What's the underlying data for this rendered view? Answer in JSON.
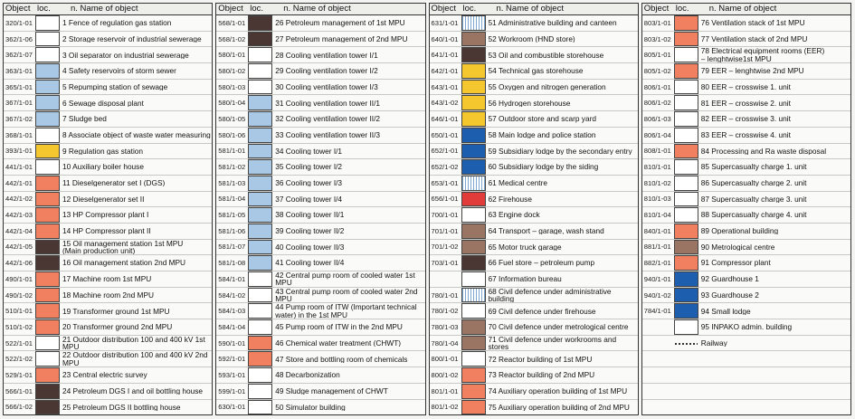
{
  "headers": {
    "object": "Object",
    "loc": "loc.",
    "name": "n.  Name of object"
  },
  "colors": {
    "white": "#ffffff",
    "lightblue": "#a9c8e5",
    "yellow": "#f5c72e",
    "salmon": "#f08060",
    "darkbrown": "#4a3632",
    "brown": "#9a7564",
    "blue": "#1d5fae",
    "red": "#e23c3a",
    "hatched": "#7ea7d0"
  },
  "columns": [
    {
      "items": [
        {
          "code": "320/1-01",
          "swatch": "white",
          "name": "1  Fence of regulation gas station"
        },
        {
          "code": "362/1-06",
          "swatch": "white",
          "name": "2  Storage reservoir of industrial sewerage"
        },
        {
          "code": "362/1-07",
          "swatch": "white",
          "name": "3  Oil separator on industrial sewerage"
        },
        {
          "code": "363/1-01",
          "swatch": "lightblue",
          "name": "4  Safety reservoirs of storm sewer"
        },
        {
          "code": "365/1-01",
          "swatch": "lightblue",
          "name": "5  Repumping station of sewage"
        },
        {
          "code": "367/1-01",
          "swatch": "lightblue",
          "name": "6  Sewage disposal plant"
        },
        {
          "code": "367/1-02",
          "swatch": "lightblue",
          "name": "7  Sludge bed"
        },
        {
          "code": "368/1-01",
          "swatch": "white",
          "name": "8  Associate object of waste water measuring"
        },
        {
          "code": "393/1-01",
          "swatch": "yellow",
          "name": "9  Regulation gas station"
        },
        {
          "code": "441/1-01",
          "swatch": "white",
          "name": "10  Auxiliary boiler house"
        },
        {
          "code": "442/1-01",
          "swatch": "salmon",
          "name": "11  Dieselgenerator set I (DGS)"
        },
        {
          "code": "442/1-02",
          "swatch": "salmon",
          "name": "12  Dieselgenerator set II"
        },
        {
          "code": "442/1-03",
          "swatch": "salmon",
          "name": "13  HP Compressor plant I"
        },
        {
          "code": "442/1-04",
          "swatch": "salmon",
          "name": "14  HP Compressor plant II"
        },
        {
          "code": "442/1-05",
          "swatch": "darkbrown",
          "name": "15  Oil management station 1st MPU\n(Main production unit)"
        },
        {
          "code": "442/1-06",
          "swatch": "darkbrown",
          "name": "16  Oil management station 2nd MPU"
        },
        {
          "code": "490/1-01",
          "swatch": "salmon",
          "name": "17  Machine room 1st MPU"
        },
        {
          "code": "490/1-02",
          "swatch": "salmon",
          "name": "18  Machine room 2nd MPU"
        },
        {
          "code": "510/1-01",
          "swatch": "salmon",
          "name": "19  Transformer ground 1st MPU"
        },
        {
          "code": "510/1-02",
          "swatch": "salmon",
          "name": "20  Transformer ground 2nd MPU"
        },
        {
          "code": "522/1-01",
          "swatch": "white",
          "name": "21  Outdoor distribution 100 and 400 kV 1st MPU"
        },
        {
          "code": "522/1-02",
          "swatch": "white",
          "name": "22  Outdoor distribution 100 and 400 kV 2nd MPU"
        },
        {
          "code": "529/1-01",
          "swatch": "salmon",
          "name": "23  Central electric survey"
        },
        {
          "code": "566/1-01",
          "swatch": "darkbrown",
          "name": "24  Petroleum DGS I and oil bottling house"
        },
        {
          "code": "566/1-02",
          "swatch": "darkbrown",
          "name": "25  Petroleum DGS II bottling house"
        }
      ]
    },
    {
      "items": [
        {
          "code": "568/1-01",
          "swatch": "darkbrown",
          "name": "26  Petroleum management of 1st MPU"
        },
        {
          "code": "568/1-02",
          "swatch": "darkbrown",
          "name": "27  Petroleum management of 2nd MPU"
        },
        {
          "code": "580/1-01",
          "swatch": "white",
          "name": "28  Cooling  ventilation tower I/1"
        },
        {
          "code": "580/1-02",
          "swatch": "white",
          "name": "29  Cooling  ventilation tower I/2"
        },
        {
          "code": "580/1-03",
          "swatch": "white",
          "name": "30  Cooling  ventilation tower I/3"
        },
        {
          "code": "580/1-04",
          "swatch": "lightblue",
          "name": "31  Cooling  ventilation tower II/1"
        },
        {
          "code": "580/1-05",
          "swatch": "lightblue",
          "name": "32  Cooling  ventilation tower II/2"
        },
        {
          "code": "580/1-06",
          "swatch": "lightblue",
          "name": "33  Cooling  ventilation tower II/3"
        },
        {
          "code": "581/1-01",
          "swatch": "lightblue",
          "name": "34  Cooling  tower I/1"
        },
        {
          "code": "581/1-02",
          "swatch": "lightblue",
          "name": "35  Cooling  tower I/2"
        },
        {
          "code": "581/1-03",
          "swatch": "lightblue",
          "name": "36  Cooling  tower I/3"
        },
        {
          "code": "581/1-04",
          "swatch": "lightblue",
          "name": "37  Cooling  tower I/4"
        },
        {
          "code": "581/1-05",
          "swatch": "lightblue",
          "name": "38  Cooling  tower II/1"
        },
        {
          "code": "581/1-06",
          "swatch": "lightblue",
          "name": "39  Cooling  tower II/2"
        },
        {
          "code": "581/1-07",
          "swatch": "lightblue",
          "name": "40  Cooling  tower II/3"
        },
        {
          "code": "581/1-08",
          "swatch": "lightblue",
          "name": "41  Cooling  tower II/4"
        },
        {
          "code": "584/1-01",
          "swatch": "white",
          "name": "42  Central pump room of cooled water 1st MPU"
        },
        {
          "code": "584/1-02",
          "swatch": "white",
          "name": "43  Central pump room of cooled water 2nd MPU"
        },
        {
          "code": "584/1-03",
          "swatch": "white",
          "name": "44  Pump room of ITW (Important technical\nwater) in the 1st MPU"
        },
        {
          "code": "584/1-04",
          "swatch": "white",
          "name": "45  Pump room of ITW in the 2nd MPU"
        },
        {
          "code": "590/1-01",
          "swatch": "salmon",
          "name": "46  Chemical water treatment (CHWT)"
        },
        {
          "code": "592/1-01",
          "swatch": "salmon",
          "name": "47  Store and bottling room of chemicals"
        },
        {
          "code": "593/1-01",
          "swatch": "white",
          "name": "48  Decarbonization"
        },
        {
          "code": "599/1-01",
          "swatch": "white",
          "name": "49  Sludge management of CHWT"
        },
        {
          "code": "630/1-01",
          "swatch": "white",
          "name": "50  Simulator building"
        }
      ]
    },
    {
      "items": [
        {
          "code": "631/1-01",
          "swatch": "hatched",
          "name": "51  Administrative building and canteen"
        },
        {
          "code": "640/1-01",
          "swatch": "brown",
          "name": "52  Workroom (HND store)"
        },
        {
          "code": "641/1-01",
          "swatch": "darkbrown",
          "name": "53  Oil and combustible storehouse"
        },
        {
          "code": "642/1-01",
          "swatch": "yellow",
          "name": "54  Technical gas storehouse"
        },
        {
          "code": "643/1-01",
          "swatch": "yellow",
          "name": "55  Oxygen and nitrogen generation"
        },
        {
          "code": "643/1-02",
          "swatch": "yellow",
          "name": "56  Hydrogen storehouse"
        },
        {
          "code": "646/1-01",
          "swatch": "yellow",
          "name": "57  Outdoor store and scarp yard"
        },
        {
          "code": "650/1-01",
          "swatch": "blue",
          "name": "58  Main lodge and police station"
        },
        {
          "code": "652/1-01",
          "swatch": "blue",
          "name": "59  Subsidiary lodge by the secondary entry"
        },
        {
          "code": "652/1-02",
          "swatch": "blue",
          "name": "60  Subsidiary lodge by the siding"
        },
        {
          "code": "653/1-01",
          "swatch": "hatched",
          "name": "61  Medical centre"
        },
        {
          "code": "656/1-01",
          "swatch": "red",
          "name": "62  Firehouse"
        },
        {
          "code": "700/1-01",
          "swatch": "white",
          "name": "63  Engine dock"
        },
        {
          "code": "701/1-01",
          "swatch": "brown",
          "name": "64  Transport – garage, wash stand"
        },
        {
          "code": "701/1-02",
          "swatch": "brown",
          "name": "65  Motor truck garage"
        },
        {
          "code": "703/1-01",
          "swatch": "darkbrown",
          "name": "66  Fuel store – petroleum pump"
        },
        {
          "code": "",
          "swatch": "white",
          "name": "67  Information bureau"
        },
        {
          "code": "780/1-01",
          "swatch": "hatched",
          "name": "68  Civil defence under administrative building"
        },
        {
          "code": "780/1-02",
          "swatch": "white",
          "name": "69  Civil defence under firehouse"
        },
        {
          "code": "780/1-03",
          "swatch": "brown",
          "name": "70  Civil defence under metrological centre"
        },
        {
          "code": "780/1-04",
          "swatch": "brown",
          "name": "71  Civil defence under workrooms and stores"
        },
        {
          "code": "800/1-01",
          "swatch": "white",
          "name": "72  Reactor building of 1st MPU"
        },
        {
          "code": "800/1-02",
          "swatch": "salmon",
          "name": "73  Reactor building of 2nd MPU"
        },
        {
          "code": "801/1-01",
          "swatch": "salmon",
          "name": "74  Auxiliary operation building of 1st MPU"
        },
        {
          "code": "801/1-02",
          "swatch": "salmon",
          "name": "75  Auxiliary operation building of 2nd MPU"
        }
      ]
    },
    {
      "items": [
        {
          "code": "803/1-01",
          "swatch": "salmon",
          "name": "76  Ventilation stack of 1st MPU"
        },
        {
          "code": "803/1-02",
          "swatch": "salmon",
          "name": "77  Ventilation stack of 2nd MPU"
        },
        {
          "code": "805/1-01",
          "swatch": "white",
          "name": "78  Electrical equipment rooms (EER)\n– lenghtwise1st MPU"
        },
        {
          "code": "805/1-02",
          "swatch": "salmon",
          "name": "79  EER – lenghtwise 2nd MPU"
        },
        {
          "code": "806/1-01",
          "swatch": "white",
          "name": "80  EER – crosswise 1. unit"
        },
        {
          "code": "806/1-02",
          "swatch": "white",
          "name": "81  EER – crosswise 2. unit"
        },
        {
          "code": "806/1-03",
          "swatch": "white",
          "name": "82  EER – crosswise 3. unit"
        },
        {
          "code": "806/1-04",
          "swatch": "white",
          "name": "83  EER – crosswise 4. unit"
        },
        {
          "code": "808/1-01",
          "swatch": "salmon",
          "name": "84  Processing and Ra waste disposal"
        },
        {
          "code": "810/1-01",
          "swatch": "white",
          "name": "85  Supercasualty charge 1. unit"
        },
        {
          "code": "810/1-02",
          "swatch": "white",
          "name": "86  Supercasualty charge 2. unit"
        },
        {
          "code": "810/1-03",
          "swatch": "white",
          "name": "87  Supercasualty charge 3. unit"
        },
        {
          "code": "810/1-04",
          "swatch": "white",
          "name": "88  Supercasualty charge 4. unit"
        },
        {
          "code": "840/1-01",
          "swatch": "salmon",
          "name": "89  Operational building"
        },
        {
          "code": "881/1-01",
          "swatch": "brown",
          "name": "90  Metrological centre"
        },
        {
          "code": "882/1-01",
          "swatch": "salmon",
          "name": "91  Compressor plant"
        },
        {
          "code": "940/1-01",
          "swatch": "blue",
          "name": "92  Guardhouse 1"
        },
        {
          "code": "940/1-02",
          "swatch": "blue",
          "name": "93  Guardhouse 2"
        },
        {
          "code": "784/1-01",
          "swatch": "blue",
          "name": "94  Small lodge"
        },
        {
          "code": "",
          "swatch": "white",
          "name": "95  INPAKO admin. building"
        },
        {
          "code": "",
          "swatch": "rail",
          "name": "Railway"
        },
        {
          "code": "",
          "swatch": "none",
          "name": ""
        },
        {
          "code": "",
          "swatch": "none",
          "name": ""
        },
        {
          "code": "",
          "swatch": "none",
          "name": ""
        },
        {
          "code": "",
          "swatch": "none",
          "name": ""
        }
      ]
    }
  ]
}
